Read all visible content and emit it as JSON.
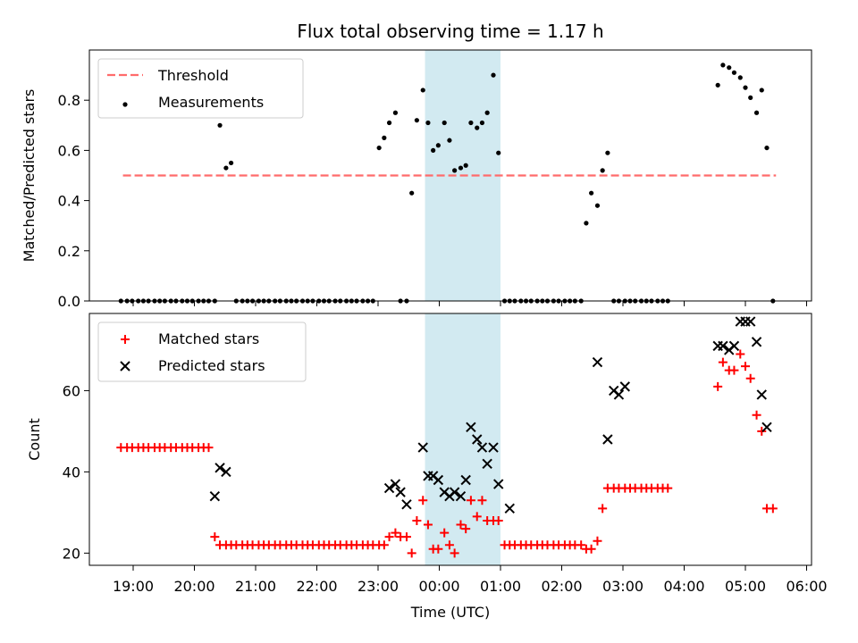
{
  "chart_data": {
    "title": "Flux total observing time = 1.17 h",
    "xlabel": "Time (UTC)",
    "x_ticks": [
      "19:00",
      "20:00",
      "21:00",
      "22:00",
      "23:00",
      "00:00",
      "01:00",
      "02:00",
      "03:00",
      "04:00",
      "05:00",
      "06:00"
    ],
    "x_start_time": "18:00",
    "highlight_span": {
      "start": "23:46",
      "end": "01:00",
      "color": "#add8e6"
    },
    "panels": [
      {
        "type": "scatter",
        "ylabel": "Matched/Predicted stars",
        "ylim": [
          0,
          1.0
        ],
        "yticks": [
          "0.0",
          "0.2",
          "0.4",
          "0.6",
          "0.8"
        ],
        "legend": "top-left",
        "series": [
          {
            "name": "Threshold",
            "kind": "dashed-line",
            "color": "#ff6b6b",
            "x": [
              "18:50",
              "05:30"
            ],
            "y": [
              0.5,
              0.5
            ]
          },
          {
            "name": "Measurements",
            "kind": "dot",
            "color": "#000000",
            "x": [
              "18:48",
              "18:54",
              "18:59",
              "19:05",
              "19:10",
              "19:15",
              "19:21",
              "19:26",
              "19:31",
              "19:37",
              "19:42",
              "19:48",
              "19:53",
              "19:58",
              "20:04",
              "20:09",
              "20:14",
              "20:20",
              "20:25",
              "20:31",
              "20:36",
              "20:41",
              "20:47",
              "20:52",
              "20:57",
              "21:03",
              "21:08",
              "21:13",
              "21:19",
              "21:24",
              "21:30",
              "21:35",
              "21:40",
              "21:46",
              "21:51",
              "21:56",
              "22:02",
              "22:07",
              "22:12",
              "22:18",
              "22:23",
              "22:29",
              "22:34",
              "22:39",
              "22:45",
              "22:50",
              "22:55",
              "23:01",
              "23:06",
              "23:11",
              "23:17",
              "23:22",
              "23:28",
              "23:33",
              "23:38",
              "23:44",
              "23:49",
              "23:54",
              "23:59",
              "00:05",
              "00:10",
              "00:15",
              "00:21",
              "00:26",
              "00:31",
              "00:37",
              "00:42",
              "00:47",
              "00:53",
              "00:58",
              "01:04",
              "01:09",
              "01:14",
              "01:20",
              "01:25",
              "01:30",
              "01:36",
              "01:41",
              "01:46",
              "01:52",
              "01:57",
              "02:03",
              "02:08",
              "02:13",
              "02:19",
              "02:24",
              "02:29",
              "02:35",
              "02:40",
              "02:45",
              "02:51",
              "02:56",
              "03:02",
              "03:07",
              "03:12",
              "03:18",
              "03:23",
              "03:28",
              "03:34",
              "03:39",
              "03:44",
              "04:33",
              "04:38",
              "04:44",
              "04:49",
              "04:55",
              "05:00",
              "05:05",
              "05:11",
              "05:16",
              "05:21",
              "05:27"
            ],
            "y": [
              0,
              0,
              0,
              0,
              0,
              0,
              0,
              0,
              0,
              0,
              0,
              0,
              0,
              0,
              0,
              0,
              0,
              0,
              0.7,
              0.53,
              0.55,
              0,
              0,
              0,
              0,
              0,
              0,
              0,
              0,
              0,
              0,
              0,
              0,
              0,
              0,
              0,
              0,
              0,
              0,
              0,
              0,
              0,
              0,
              0,
              0,
              0,
              0,
              0.61,
              0.65,
              0.71,
              0.75,
              0,
              0,
              0.43,
              0.72,
              0.84,
              0.71,
              0.6,
              0.62,
              0.71,
              0.64,
              0.52,
              0.53,
              0.54,
              0.71,
              0.69,
              0.71,
              0.75,
              0.9,
              0.59,
              0,
              0,
              0,
              0,
              0,
              0,
              0,
              0,
              0,
              0,
              0,
              0,
              0,
              0,
              0,
              0.31,
              0.43,
              0.38,
              0.52,
              0.59,
              0,
              0,
              0,
              0,
              0,
              0,
              0,
              0,
              0,
              0,
              0,
              0.86,
              0.94,
              0.93,
              0.91,
              0.89,
              0.85,
              0.81,
              0.75,
              0.84,
              0.61,
              0
            ]
          }
        ]
      },
      {
        "type": "scatter",
        "ylabel": "Count",
        "ylim": [
          17,
          79
        ],
        "yticks": [
          "20",
          "40",
          "60"
        ],
        "legend": "top-left",
        "series": [
          {
            "name": "Matched stars",
            "kind": "plus",
            "color": "#ff0000",
            "x": [
              "18:48",
              "18:54",
              "18:59",
              "19:05",
              "19:10",
              "19:15",
              "19:21",
              "19:26",
              "19:31",
              "19:37",
              "19:42",
              "19:48",
              "19:53",
              "19:58",
              "20:04",
              "20:09",
              "20:14",
              "20:20",
              "20:25",
              "20:31",
              "20:36",
              "20:41",
              "20:47",
              "20:52",
              "20:57",
              "21:03",
              "21:08",
              "21:13",
              "21:19",
              "21:24",
              "21:30",
              "21:35",
              "21:40",
              "21:46",
              "21:51",
              "21:56",
              "22:02",
              "22:07",
              "22:12",
              "22:18",
              "22:23",
              "22:29",
              "22:34",
              "22:39",
              "22:45",
              "22:50",
              "22:55",
              "23:01",
              "23:06",
              "23:11",
              "23:17",
              "23:22",
              "23:28",
              "23:33",
              "23:38",
              "23:44",
              "23:49",
              "23:54",
              "23:59",
              "00:05",
              "00:10",
              "00:15",
              "00:21",
              "00:26",
              "00:31",
              "00:37",
              "00:42",
              "00:47",
              "00:53",
              "00:58",
              "01:04",
              "01:09",
              "01:14",
              "01:20",
              "01:25",
              "01:30",
              "01:36",
              "01:41",
              "01:46",
              "01:52",
              "01:57",
              "02:03",
              "02:08",
              "02:13",
              "02:19",
              "02:24",
              "02:29",
              "02:35",
              "02:40",
              "02:45",
              "02:51",
              "02:56",
              "03:02",
              "03:07",
              "03:12",
              "03:18",
              "03:23",
              "03:28",
              "03:34",
              "03:39",
              "03:44",
              "04:33",
              "04:38",
              "04:44",
              "04:49",
              "04:55",
              "05:00",
              "05:05",
              "05:11",
              "05:16",
              "05:21",
              "05:27"
            ],
            "y": [
              46,
              46,
              46,
              46,
              46,
              46,
              46,
              46,
              46,
              46,
              46,
              46,
              46,
              46,
              46,
              46,
              46,
              24,
              22,
              22,
              22,
              22,
              22,
              22,
              22,
              22,
              22,
              22,
              22,
              22,
              22,
              22,
              22,
              22,
              22,
              22,
              22,
              22,
              22,
              22,
              22,
              22,
              22,
              22,
              22,
              22,
              22,
              22,
              22,
              24,
              25,
              24,
              24,
              20,
              28,
              33,
              27,
              21,
              21,
              25,
              22,
              20,
              27,
              26,
              33,
              29,
              33,
              28,
              28,
              28,
              22,
              22,
              22,
              22,
              22,
              22,
              22,
              22,
              22,
              22,
              22,
              22,
              22,
              22,
              22,
              21,
              21,
              23,
              31,
              36,
              36,
              36,
              36,
              36,
              36,
              36,
              36,
              36,
              36,
              36,
              36,
              61,
              67,
              65,
              65,
              69,
              66,
              63,
              54,
              50,
              31,
              31
            ]
          },
          {
            "name": "Predicted stars",
            "kind": "x",
            "color": "#000000",
            "x": [
              "20:20",
              "20:25",
              "20:31",
              "23:11",
              "23:17",
              "23:22",
              "23:28",
              "23:44",
              "23:49",
              "23:54",
              "23:59",
              "00:05",
              "00:10",
              "00:15",
              "00:21",
              "00:26",
              "00:31",
              "00:37",
              "00:42",
              "00:47",
              "00:53",
              "00:58",
              "01:09",
              "02:35",
              "02:45",
              "02:51",
              "02:56",
              "03:02",
              "04:33",
              "04:38",
              "04:44",
              "04:49",
              "04:55",
              "05:00",
              "05:05",
              "05:11",
              "05:16",
              "05:21"
            ],
            "y": [
              34,
              41,
              40,
              36,
              37,
              35,
              32,
              46,
              39,
              39,
              38,
              35,
              34,
              35,
              34,
              38,
              51,
              48,
              46,
              42,
              46,
              37,
              31,
              67,
              48,
              60,
              59,
              61,
              71,
              71,
              70,
              71,
              77,
              77,
              77,
              72,
              59,
              51
            ]
          }
        ]
      }
    ]
  }
}
